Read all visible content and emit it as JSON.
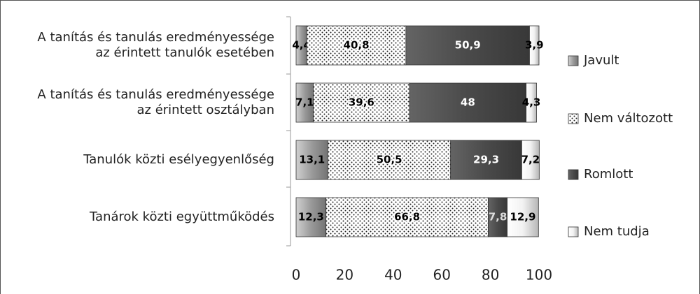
{
  "chart_data": {
    "type": "stacked_barh",
    "categories": [
      "A tanítás és tanulás eredményessége\naz érintett tanulók esetében",
      "A tanítás és tanulás eredményessége\naz érintett osztályban",
      "Tanulók közti esélyegyenlőség",
      "Tanárok közti együttműködés"
    ],
    "series": [
      {
        "name": "Javult",
        "color": "#9a9a9a",
        "values": [
          4.4,
          7.1,
          13.1,
          12.3
        ],
        "value_labels": [
          "4,4",
          "7,1",
          "13,1",
          "12,3"
        ]
      },
      {
        "name": "Nem változott",
        "color": "#ffffff",
        "values": [
          40.8,
          39.6,
          50.5,
          66.8
        ],
        "value_labels": [
          "40,8",
          "39,6",
          "50,5",
          "66,8"
        ]
      },
      {
        "name": "Romlott",
        "color": "#4a4a4a",
        "values": [
          50.9,
          48,
          29.3,
          7.8
        ],
        "value_labels": [
          "50,9",
          "48",
          "29,3",
          "7,8"
        ]
      },
      {
        "name": "Nem tudja",
        "color": "#f2f2f2",
        "values": [
          3.9,
          4.3,
          7.2,
          12.9
        ],
        "value_labels": [
          "3,9",
          "4,3",
          "7,2",
          "12,9"
        ]
      }
    ],
    "xlim": [
      0,
      100
    ],
    "xticks": [
      0,
      20,
      40,
      60,
      80,
      100
    ]
  }
}
